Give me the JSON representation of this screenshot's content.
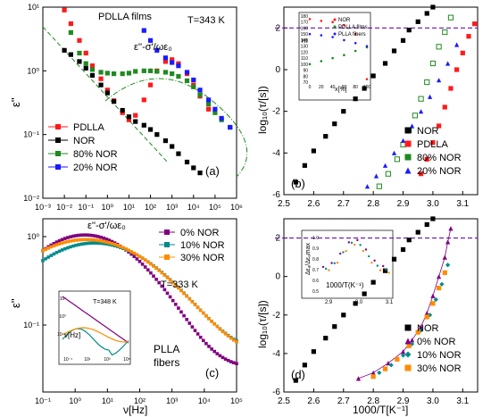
{
  "colors": {
    "red": "#ff1a1a",
    "black": "#000000",
    "green": "#1f8a1f",
    "blue": "#1a1aff",
    "purple": "#800080",
    "teal": "#008b8b",
    "orange": "#ff8c00",
    "dashed_purple": "#6a0dad"
  },
  "chart_data": [
    {
      "panel_label": "(a)",
      "type": "scatter",
      "title": "PDLLA films",
      "annotation_temp": "T=343 K",
      "annotation_formula": "ε''-σ'/ωε₀",
      "ylabel": "ε''",
      "xlabel": "",
      "xscale": "log",
      "yscale": "log",
      "xlim": [
        0.001,
        1000000
      ],
      "ylim": [
        0.01,
        10
      ],
      "x_ticks": [
        "10⁻³",
        "10⁻²",
        "10⁻¹",
        "10⁰",
        "10¹",
        "10²",
        "10³",
        "10⁴",
        "10⁵",
        "10⁶"
      ],
      "y_ticks": [
        "10⁻²",
        "10⁻¹",
        "10⁰",
        "10¹"
      ],
      "legend": [
        "PDLLA",
        "NOR",
        "80% NOR",
        "20% NOR"
      ],
      "legend_position": "bottom-left",
      "series": [
        {
          "name": "PDLLA",
          "color": "red",
          "marker": "square",
          "x": [
            0.01,
            0.02,
            0.05,
            0.1,
            0.2,
            0.5,
            1,
            2,
            5,
            10,
            20,
            50,
            100,
            200,
            500,
            1000,
            2000,
            5000,
            10000,
            20000,
            50000
          ],
          "y": [
            9,
            5.5,
            3,
            1.9,
            1.2,
            0.75,
            0.5,
            0.34,
            0.22,
            0.17,
            0.2,
            0.35,
            0.6,
            1.0,
            1.4,
            1.5,
            1.3,
            0.9,
            0.6,
            0.4,
            0.25
          ]
        },
        {
          "name": "NOR",
          "color": "black",
          "marker": "square",
          "x": [
            0.01,
            0.02,
            0.05,
            0.1,
            0.2,
            0.5,
            1,
            2,
            5,
            10,
            20,
            50,
            100,
            200,
            500,
            1000,
            2000,
            5000,
            10000,
            20000
          ],
          "y": [
            2.1,
            1.8,
            1.4,
            1.1,
            0.85,
            0.6,
            0.45,
            0.33,
            0.24,
            0.19,
            0.16,
            0.14,
            0.12,
            0.1,
            0.08,
            0.065,
            0.05,
            0.037,
            0.03,
            0.025
          ]
        },
        {
          "name": "80% NOR",
          "color": "green",
          "marker": "square",
          "x": [
            0.02,
            0.05,
            0.1,
            0.2,
            0.5,
            1,
            2,
            5,
            10,
            20,
            50,
            100,
            200,
            500,
            1000,
            2000,
            5000,
            10000,
            20000,
            50000,
            100000,
            200000,
            500000
          ],
          "y": [
            4,
            1.9,
            1.3,
            1.05,
            0.95,
            0.92,
            0.9,
            0.9,
            0.92,
            0.98,
            1.0,
            1.0,
            0.98,
            0.95,
            0.9,
            0.82,
            0.7,
            0.56,
            0.42,
            0.3,
            0.22,
            0.17,
            0.13
          ]
        },
        {
          "name": "20% NOR",
          "color": "blue",
          "marker": "square",
          "x": [
            50,
            100,
            200,
            500,
            1000,
            2000,
            5000,
            10000,
            20000,
            50000,
            100000,
            200000,
            500000
          ],
          "y": [
            4.3,
            3.0,
            2.1,
            1.6,
            1.35,
            1.2,
            0.95,
            0.72,
            0.5,
            0.35,
            0.25,
            0.18,
            0.13
          ]
        }
      ]
    },
    {
      "panel_label": "(b)",
      "type": "scatter",
      "ylabel": "log₁₀(τ/[s])",
      "xlabel": "",
      "xlim": [
        2.5,
        3.15
      ],
      "ylim": [
        -6,
        3
      ],
      "x_ticks": [
        "2.5",
        "2.6",
        "2.7",
        "2.8",
        "2.9",
        "3.0",
        "3.1"
      ],
      "y_ticks": [
        "-6",
        "-4",
        "-2",
        "0",
        "2"
      ],
      "dashed_line_y": 2,
      "legend": [
        "NOR",
        "PDLLA",
        "80% NOR",
        "20% NOR"
      ],
      "legend_position": "bottom-right",
      "series": [
        {
          "name": "NOR",
          "color": "black",
          "marker": "square",
          "x": [
            2.54,
            2.57,
            2.6,
            2.64,
            2.67,
            2.7,
            2.74,
            2.77,
            2.8,
            2.84,
            2.87,
            2.9,
            2.92,
            2.95,
            2.98,
            3.0
          ],
          "y": [
            -5.4,
            -4.6,
            -3.9,
            -3.2,
            -2.6,
            -2.0,
            -1.4,
            -0.9,
            -0.3,
            0.3,
            0.9,
            1.4,
            1.9,
            2.3,
            2.7,
            3.0
          ]
        },
        {
          "name": "PDLLA",
          "color": "red",
          "marker": "square",
          "x": [
            2.96,
            2.98,
            3.0,
            3.02,
            3.04,
            3.06,
            3.08,
            3.1,
            3.12,
            3.14
          ],
          "y": [
            -5.0,
            -4.3,
            -3.5,
            -2.7,
            -1.8,
            -0.9,
            0.0,
            0.8,
            1.6,
            2.2
          ]
        },
        {
          "name": "80% NOR",
          "color": "green",
          "marker": "square-open",
          "x": [
            2.82,
            2.85,
            2.88,
            2.9,
            2.92,
            2.94,
            2.96,
            2.98,
            3.0,
            3.02,
            3.04,
            3.06
          ],
          "y": [
            -5.6,
            -5.0,
            -4.3,
            -3.6,
            -2.9,
            -2.2,
            -1.4,
            -0.6,
            0.3,
            1.1,
            1.8,
            2.5
          ]
        },
        {
          "name": "20% NOR",
          "color": "blue",
          "marker": "triangle",
          "x": [
            2.78,
            2.81,
            2.84,
            2.87,
            2.9,
            2.93,
            2.96,
            2.99,
            3.02,
            3.05,
            3.08
          ],
          "y": [
            -5.6,
            -5.1,
            -4.6,
            -4.0,
            -3.4,
            -2.7,
            -2.0,
            -1.3,
            -0.5,
            0.3,
            1.2
          ]
        }
      ],
      "inset": {
        "xlabel": "x[%]",
        "ylabel": "m",
        "x_ticks": [
          "0",
          "20",
          "40",
          "60",
          "80",
          "100"
        ],
        "y_ticks": [
          "70",
          "80",
          "90",
          "100",
          "110",
          "120",
          "130",
          "140",
          "150",
          "160",
          "170",
          "180"
        ],
        "legend": [
          "NOR",
          "PDLLA films",
          "PLLA fibers"
        ],
        "series": [
          {
            "name": "NOR",
            "color": "red",
            "x": [
              0,
              20,
              40,
              60,
              80,
              100
            ],
            "y": [
              175,
              172,
              170,
              165,
              150,
              75
            ]
          },
          {
            "name": "PDLLA films",
            "color": "green",
            "x": [
              0,
              20,
              40,
              60,
              80,
              100
            ],
            "y": [
              100,
              105,
              110,
              115,
              122,
              128
            ]
          },
          {
            "name": "PLLA fibers",
            "color": "blue",
            "x": [
              0,
              20,
              40,
              60,
              80,
              100
            ],
            "y": [
              150,
              148,
              145,
              140,
              135,
              130
            ]
          }
        ]
      }
    },
    {
      "panel_label": "(c)",
      "type": "scatter",
      "annotation_temp": "T=333 K",
      "annotation_formula": "ε''-σ'/ωε₀",
      "annotation_material": [
        "PLLA",
        "fibers"
      ],
      "ylabel": "ε''",
      "xlabel": "ν[Hz]",
      "xscale": "log",
      "yscale": "log",
      "xlim": [
        0.1,
        100000
      ],
      "ylim": [
        0.02,
        2
      ],
      "x_ticks": [
        "10⁻¹",
        "10⁰",
        "10¹",
        "10²",
        "10³",
        "10⁴",
        "10⁵"
      ],
      "y_ticks": [
        "10⁻¹",
        "10⁰"
      ],
      "legend": [
        "0% NOR",
        "10% NOR",
        "30% NOR"
      ],
      "legend_position": "top-right",
      "series": [
        {
          "name": "0% NOR",
          "color": "purple",
          "marker": "square"
        },
        {
          "name": "10% NOR",
          "color": "teal",
          "marker": "square"
        },
        {
          "name": "30% NOR",
          "color": "orange",
          "marker": "square"
        }
      ],
      "inset": {
        "annotation": "T=348 K",
        "xlabel": "ν[Hz]",
        "ylabel": "ε''",
        "x_ticks": [
          "10⁻¹",
          "10¹",
          "10³",
          "10⁵"
        ],
        "y_ticks": [
          "10¹",
          "10⁰",
          "10⁻¹"
        ]
      }
    },
    {
      "panel_label": "(d)",
      "type": "scatter",
      "ylabel": "log₁₀(τ/[s])",
      "xlabel": "1000/T[K⁻¹]",
      "xlim": [
        2.5,
        3.15
      ],
      "ylim": [
        -6,
        3
      ],
      "x_ticks": [
        "2.5",
        "2.6",
        "2.7",
        "2.8",
        "2.9",
        "3.0",
        "3.1"
      ],
      "y_ticks": [
        "-6",
        "-4",
        "-2",
        "0",
        "2"
      ],
      "dashed_line_y": 2,
      "legend": [
        "NOR",
        "0% NOR",
        "10% NOR",
        "30% NOR"
      ],
      "legend_position": "bottom-right",
      "series": [
        {
          "name": "NOR",
          "color": "black",
          "marker": "square",
          "x": [
            2.54,
            2.57,
            2.6,
            2.64,
            2.67,
            2.7,
            2.74,
            2.77,
            2.8,
            2.84,
            2.87,
            2.9,
            2.92,
            2.95,
            2.98,
            3.0
          ],
          "y": [
            -5.4,
            -4.6,
            -3.9,
            -3.2,
            -2.6,
            -2.0,
            -1.4,
            -0.9,
            -0.3,
            0.3,
            0.9,
            1.4,
            1.9,
            2.3,
            2.7,
            3.0
          ]
        },
        {
          "name": "0% NOR",
          "color": "purple",
          "marker": "triangle",
          "x": [
            2.75,
            2.8,
            2.85,
            2.9,
            2.93,
            2.96,
            2.98,
            3.0,
            3.02,
            3.04,
            3.05,
            3.06
          ],
          "y": [
            -5.3,
            -5.0,
            -4.5,
            -3.9,
            -3.3,
            -2.6,
            -1.9,
            -1.0,
            0.0,
            1.0,
            1.8,
            2.5
          ]
        },
        {
          "name": "10% NOR",
          "color": "teal",
          "marker": "diamond",
          "x": [
            2.82,
            2.86,
            2.9,
            2.93,
            2.96,
            2.99,
            3.01,
            3.03,
            3.05
          ],
          "y": [
            -5.0,
            -4.6,
            -4.1,
            -3.5,
            -2.8,
            -2.0,
            -1.2,
            -0.4,
            0.6
          ]
        },
        {
          "name": "30% NOR",
          "color": "orange",
          "marker": "square",
          "x": [
            2.8,
            2.84,
            2.88,
            2.92,
            2.95,
            2.98,
            3.0,
            3.02,
            3.04
          ],
          "y": [
            -5.2,
            -4.8,
            -4.3,
            -3.6,
            -2.9,
            -2.1,
            -1.4,
            -0.6,
            0.2
          ]
        }
      ],
      "inset": {
        "xlabel": "1000/T(K⁻¹)",
        "ylabel": "Δεₐ/Δεₐmax",
        "x_ticks": [
          "2.9",
          "3.0",
          "3.1"
        ],
        "y_ticks": [
          "0.5",
          "0.6",
          "0.7",
          "0.8",
          "0.9",
          "1.0"
        ]
      }
    }
  ]
}
